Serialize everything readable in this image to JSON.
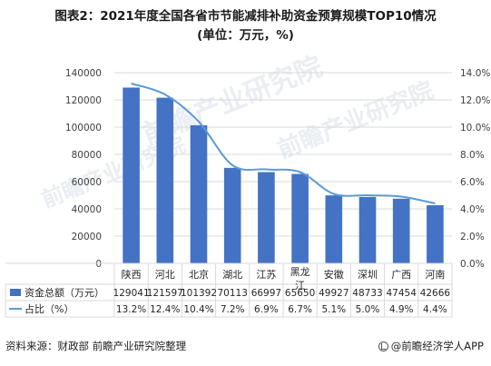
{
  "title_line1": "图表2：2021年度全国各省市节能减排补助资金预算规模TOP10情况",
  "title_line2": "(单位：万元，%)",
  "watermark": "前瞻产业研究院",
  "footer": {
    "source": "资料来源：财政部 前瞻产业研究院整理",
    "brand": "@前瞻经济学人APP"
  },
  "chart_data": {
    "type": "bar",
    "categories": [
      "陕西",
      "河北",
      "北京",
      "湖北",
      "江苏",
      "黑龙江",
      "安徽",
      "深圳",
      "广西",
      "河南"
    ],
    "series": [
      {
        "name": "资金总额（万元）",
        "type": "bar",
        "axis": "left",
        "color": "#4472c4",
        "values": [
          129041,
          121597,
          101392,
          70113,
          66997,
          65650,
          49927,
          48733,
          47454,
          42666
        ],
        "labels": [
          "129041",
          "121597",
          "101392",
          "70113",
          "66997",
          "65650",
          "49927",
          "48733",
          "47454",
          "42666"
        ]
      },
      {
        "name": "占比（%）",
        "type": "line",
        "axis": "right",
        "color": "#5b9bd5",
        "values": [
          13.2,
          12.4,
          10.4,
          7.2,
          6.9,
          6.7,
          5.1,
          5.0,
          4.9,
          4.4
        ],
        "labels": [
          "13.2%",
          "12.4%",
          "10.4%",
          "7.2%",
          "6.9%",
          "6.7%",
          "5.1%",
          "5.0%",
          "4.9%",
          "4.4%"
        ]
      }
    ],
    "y_left": {
      "min": 0,
      "max": 140000,
      "ticks": [
        "0",
        "20000",
        "40000",
        "60000",
        "80000",
        "100000",
        "120000",
        "140000"
      ]
    },
    "y_right": {
      "min": 0,
      "max": 14,
      "ticks": [
        "0.0%",
        "2.0%",
        "4.0%",
        "6.0%",
        "8.0%",
        "10.0%",
        "12.0%",
        "14.0%"
      ]
    },
    "gridlines": true,
    "legend": "data-table"
  }
}
